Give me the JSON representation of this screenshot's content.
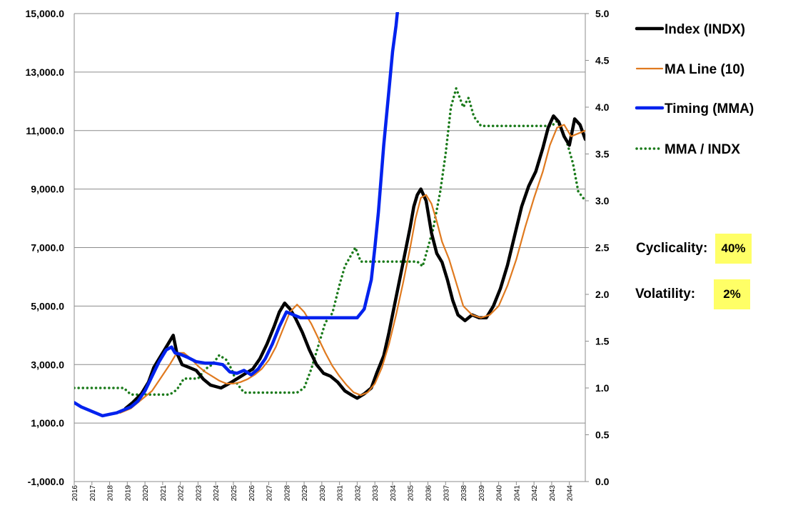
{
  "chart_data": {
    "type": "line",
    "y_left": {
      "ylim": [
        -1000,
        15000
      ],
      "ticks": [
        "-1,000.0",
        "1,000.0",
        "3,000.0",
        "5,000.0",
        "7,000.0",
        "9,000.0",
        "11,000.0",
        "13,000.0",
        "15,000.0"
      ],
      "tick_values": [
        -1000,
        1000,
        3000,
        5000,
        7000,
        9000,
        11000,
        13000,
        15000
      ]
    },
    "y_right": {
      "ylim": [
        0,
        5
      ],
      "ticks": [
        "0.0",
        "0.5",
        "1.0",
        "1.5",
        "2.0",
        "2.5",
        "3.0",
        "3.5",
        "4.0",
        "4.5",
        "5.0"
      ],
      "tick_values": [
        0,
        0.5,
        1,
        1.5,
        2,
        2.5,
        3,
        3.5,
        4,
        4.5,
        5
      ]
    },
    "x": {
      "xlim": [
        2016,
        2044.9
      ],
      "ticks": [
        "2016",
        "2017",
        "2018",
        "2019",
        "2020",
        "2021",
        "2022",
        "2023",
        "2024",
        "2025",
        "2026",
        "2027",
        "2028",
        "2029",
        "2030",
        "2031",
        "2032",
        "2033",
        "2034",
        "2035",
        "2036",
        "2037",
        "2038",
        "2039",
        "2040",
        "2041",
        "2042",
        "2043",
        "2044"
      ],
      "tick_values": [
        2016.0,
        2017.0,
        2018.0,
        2019.0,
        2020.0,
        2021.0,
        2022.0,
        2023.0,
        2024.0,
        2025.0,
        2026.0,
        2027.0,
        2028.0,
        2029.0,
        2030.0,
        2031.0,
        2032.0,
        2033.0,
        2034.0,
        2035.0,
        2036.0,
        2037.0,
        2038.0,
        2039.0,
        2040.0,
        2041.0,
        2042.0,
        2043.0,
        2044.0
      ]
    },
    "grid": "horizontal",
    "legend_position": "right",
    "series": [
      {
        "name": "Index (INDX)",
        "axis": "left",
        "color": "#000000",
        "style": "solid-thick",
        "x": [
          2018.9,
          2019.3,
          2019.8,
          2020.2,
          2020.5,
          2020.8,
          2021.1,
          2021.4,
          2021.6,
          2021.8,
          2022.1,
          2022.5,
          2022.9,
          2023.3,
          2023.7,
          2024.0,
          2024.3,
          2024.6,
          2024.9,
          2025.3,
          2025.7,
          2026.1,
          2026.5,
          2026.9,
          2027.3,
          2027.6,
          2027.9,
          2028.2,
          2028.5,
          2028.9,
          2029.3,
          2029.7,
          2030.1,
          2030.5,
          2030.9,
          2031.3,
          2031.7,
          2032.0,
          2032.4,
          2032.8,
          2033.1,
          2033.5,
          2033.8,
          2034.1,
          2034.4,
          2034.7,
          2035.0,
          2035.2,
          2035.4,
          2035.6,
          2035.9,
          2036.2,
          2036.5,
          2036.8,
          2037.1,
          2037.4,
          2037.7,
          2038.1,
          2038.5,
          2038.9,
          2039.3,
          2039.7,
          2040.1,
          2040.5,
          2040.9,
          2041.3,
          2041.7,
          2042.1,
          2042.5,
          2042.8,
          2043.1,
          2043.4,
          2043.7,
          2044.0,
          2044.3,
          2044.6,
          2044.9
        ],
        "y": [
          1500,
          1700,
          2000,
          2400,
          2900,
          3200,
          3500,
          3800,
          4000,
          3400,
          3000,
          2900,
          2800,
          2500,
          2300,
          2250,
          2200,
          2300,
          2400,
          2550,
          2700,
          2850,
          3200,
          3700,
          4300,
          4800,
          5100,
          4900,
          4600,
          4100,
          3500,
          3000,
          2700,
          2600,
          2400,
          2100,
          1950,
          1850,
          2000,
          2200,
          2700,
          3300,
          4100,
          5000,
          5900,
          6800,
          7700,
          8400,
          8800,
          9000,
          8600,
          7500,
          6800,
          6500,
          5900,
          5200,
          4700,
          4500,
          4700,
          4600,
          4600,
          5000,
          5600,
          6400,
          7400,
          8400,
          9100,
          9600,
          10400,
          11100,
          11500,
          11300,
          10800,
          10500,
          11400,
          11200,
          10700
        ]
      },
      {
        "name": "MA Line (10)",
        "axis": "left",
        "color": "#e07a1f",
        "style": "solid",
        "x": [
          2018.6,
          2019.2,
          2019.8,
          2020.4,
          2020.9,
          2021.4,
          2021.8,
          2022.2,
          2022.6,
          2023.0,
          2023.4,
          2023.8,
          2024.2,
          2024.6,
          2025.0,
          2025.4,
          2025.8,
          2026.2,
          2026.6,
          2027.0,
          2027.4,
          2027.8,
          2028.2,
          2028.6,
          2029.0,
          2029.4,
          2029.8,
          2030.2,
          2030.6,
          2031.0,
          2031.4,
          2031.8,
          2032.2,
          2032.6,
          2033.0,
          2033.4,
          2033.8,
          2034.2,
          2034.6,
          2035.0,
          2035.3,
          2035.6,
          2035.9,
          2036.2,
          2036.5,
          2036.8,
          2037.2,
          2037.6,
          2038.0,
          2038.5,
          2039.0,
          2039.5,
          2040.0,
          2040.5,
          2041.0,
          2041.5,
          2042.0,
          2042.5,
          2042.9,
          2043.3,
          2043.7,
          2044.1,
          2044.5,
          2044.9
        ],
        "y": [
          1350,
          1500,
          1800,
          2100,
          2550,
          3000,
          3400,
          3400,
          3200,
          2950,
          2750,
          2600,
          2450,
          2350,
          2350,
          2400,
          2500,
          2650,
          2850,
          3150,
          3600,
          4200,
          4800,
          5050,
          4800,
          4400,
          3900,
          3400,
          2950,
          2600,
          2300,
          2050,
          1950,
          2050,
          2350,
          2900,
          3700,
          4700,
          5800,
          7000,
          8000,
          8700,
          8800,
          8500,
          7900,
          7200,
          6600,
          5800,
          5000,
          4700,
          4600,
          4700,
          5000,
          5700,
          6600,
          7700,
          8700,
          9600,
          10500,
          11100,
          11200,
          10800,
          10900,
          11000
        ]
      },
      {
        "name": "Timing (MMA)",
        "axis": "left",
        "color": "#0022ee",
        "style": "solid-thick",
        "x": [
          2016.0,
          2016.4,
          2016.8,
          2017.2,
          2017.6,
          2018.0,
          2018.4,
          2018.8,
          2019.2,
          2019.6,
          2020.0,
          2020.4,
          2020.8,
          2021.2,
          2021.5,
          2021.7,
          2022.0,
          2022.4,
          2022.9,
          2023.4,
          2023.9,
          2024.4,
          2024.8,
          2025.2,
          2025.6,
          2026.0,
          2026.4,
          2026.8,
          2027.2,
          2027.6,
          2028.0,
          2028.4,
          2028.8,
          2029.2,
          2029.6,
          2030.0,
          2030.4,
          2030.8,
          2031.2,
          2031.6,
          2032.0,
          2032.4,
          2032.8,
          2033.0,
          2033.2,
          2033.5,
          2033.8,
          2034.0,
          2034.2,
          2034.3
        ],
        "y": [
          1700,
          1550,
          1450,
          1350,
          1250,
          1300,
          1350,
          1450,
          1550,
          1750,
          2100,
          2600,
          3100,
          3500,
          3600,
          3400,
          3350,
          3250,
          3100,
          3050,
          3050,
          3000,
          2750,
          2700,
          2800,
          2650,
          2850,
          3200,
          3700,
          4300,
          4800,
          4700,
          4600,
          4600,
          4600,
          4600,
          4600,
          4600,
          4600,
          4600,
          4600,
          4900,
          5900,
          7000,
          8200,
          10500,
          12400,
          13700,
          14600,
          15200
        ]
      },
      {
        "name": "MMA / INDX",
        "axis": "right",
        "color": "#1a7a1a",
        "style": "dotted",
        "x": [
          2016.0,
          2017.0,
          2018.0,
          2018.8,
          2019.2,
          2019.8,
          2020.4,
          2020.9,
          2021.4,
          2021.8,
          2022.2,
          2022.6,
          2023.0,
          2023.4,
          2023.8,
          2024.2,
          2024.6,
          2024.9,
          2025.2,
          2025.6,
          2026.0,
          2026.6,
          2027.2,
          2027.8,
          2028.2,
          2028.6,
          2029.0,
          2029.4,
          2029.8,
          2030.2,
          2030.6,
          2031.0,
          2031.3,
          2031.6,
          2031.9,
          2032.2,
          2032.6,
          2033.0,
          2033.5,
          2034.0,
          2034.5,
          2035.0,
          2035.4,
          2035.7,
          2036.0,
          2036.3,
          2036.7,
          2037.0,
          2037.3,
          2037.6,
          2037.8,
          2038.0,
          2038.3,
          2038.6,
          2039.0,
          2039.5,
          2040.0,
          2040.5,
          2041.0,
          2041.5,
          2042.0,
          2042.5,
          2043.0,
          2043.3,
          2043.6,
          2043.9,
          2044.2,
          2044.5,
          2044.9
        ],
        "y": [
          1.0,
          1.0,
          1.0,
          1.0,
          0.93,
          0.93,
          0.93,
          0.93,
          0.93,
          0.98,
          1.1,
          1.1,
          1.1,
          1.2,
          1.25,
          1.35,
          1.3,
          1.2,
          1.05,
          0.95,
          0.95,
          0.95,
          0.95,
          0.95,
          0.95,
          0.95,
          1.0,
          1.2,
          1.45,
          1.7,
          1.8,
          2.1,
          2.3,
          2.4,
          2.5,
          2.35,
          2.35,
          2.35,
          2.35,
          2.35,
          2.35,
          2.35,
          2.35,
          2.3,
          2.5,
          2.7,
          3.1,
          3.5,
          4.0,
          4.2,
          4.1,
          4.0,
          4.1,
          3.9,
          3.8,
          3.8,
          3.8,
          3.8,
          3.8,
          3.8,
          3.8,
          3.8,
          3.8,
          3.85,
          3.75,
          3.6,
          3.4,
          3.1,
          3.0
        ]
      }
    ]
  },
  "stats": {
    "cyclicality_label": "Cyclicality:",
    "cyclicality_value": "40%",
    "volatility_label": "Volatility:",
    "volatility_value": "2%"
  }
}
